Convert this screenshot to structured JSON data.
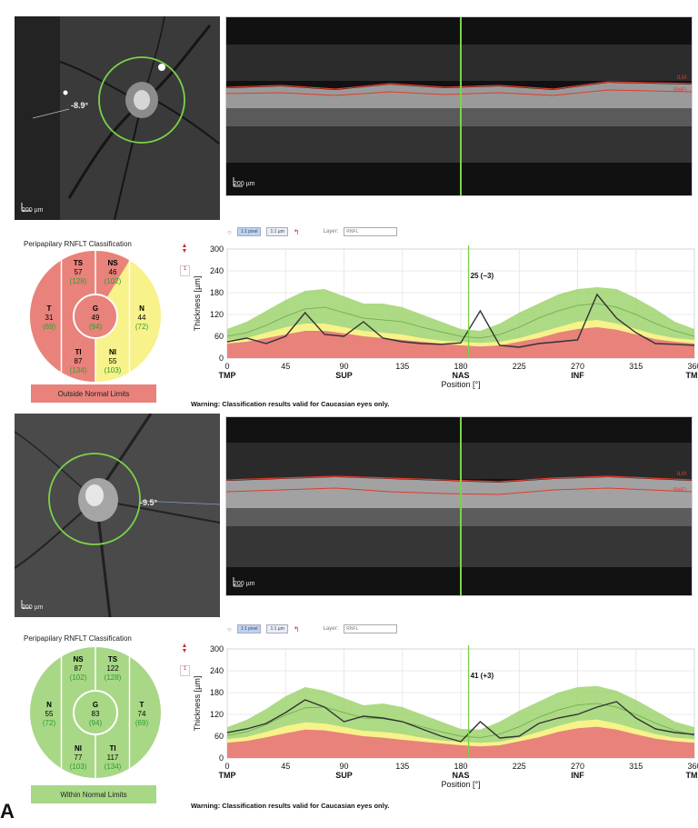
{
  "colors": {
    "abnormal": "#e8827b",
    "borderline": "#f7f28a",
    "normal": "#a8d786",
    "normal_band": "#9fd36f",
    "scan_line": "#7bd24b",
    "text_normal_ref": "#2f9e2f"
  },
  "icons": [
    "arrow-icon",
    "up-down-arrows-icon",
    "ruler-icon",
    "layer-icon"
  ],
  "top": {
    "fundus": {
      "angle": "-8.9°",
      "scale": "200 µm"
    },
    "bscan": {
      "scale": "200 µm",
      "ilm": "ILM",
      "rnfl": "RNFL"
    },
    "toolbar": {
      "btn1": "1:1 pixel",
      "btn2": "1:1 µm",
      "layer_label": "Layer:",
      "layer_value": "RNFL"
    },
    "classification": {
      "title": "Peripapilary RNFLT Classification",
      "status": "Outside Normal Limits",
      "sectors": {
        "TS": {
          "label": "TS",
          "value": "57",
          "ref": "(128)"
        },
        "NS": {
          "label": "NS",
          "value": "46",
          "ref": "(102)"
        },
        "T": {
          "label": "T",
          "value": "31",
          "ref": "(69)"
        },
        "G": {
          "label": "G",
          "value": "49",
          "ref": "(94)"
        },
        "N": {
          "label": "N",
          "value": "44",
          "ref": "(72)"
        },
        "TI": {
          "label": "TI",
          "value": "87",
          "ref": "(134)"
        },
        "NI": {
          "label": "NI",
          "value": "55",
          "ref": "(103)"
        }
      }
    },
    "warning": "Warning: Classification results valid for Caucasian eyes only.",
    "side_num": "1"
  },
  "bottom": {
    "fundus": {
      "angle": "-9.5°",
      "scale": "200 µm"
    },
    "bscan": {
      "scale": "200 µm",
      "ilm": "ILM",
      "rnfl": "RNFL"
    },
    "toolbar": {
      "btn1": "1:1 pixel",
      "btn2": "1:1 µm",
      "layer_label": "Layer:",
      "layer_value": "RNFL"
    },
    "classification": {
      "title": "Peripapilary RNFLT Classification",
      "status": "Within Normal Limits",
      "sectors": {
        "NS": {
          "label": "NS",
          "value": "87",
          "ref": "(102)"
        },
        "TS": {
          "label": "TS",
          "value": "122",
          "ref": "(128)"
        },
        "N": {
          "label": "N",
          "value": "55",
          "ref": "(72)"
        },
        "G": {
          "label": "G",
          "value": "83",
          "ref": "(94)"
        },
        "T": {
          "label": "T",
          "value": "74",
          "ref": "(69)"
        },
        "NI": {
          "label": "NI",
          "value": "77",
          "ref": "(103)"
        },
        "TI": {
          "label": "TI",
          "value": "117",
          "ref": "(134)"
        }
      }
    },
    "warning": "Warning: Classification results valid for Caucasian eyes only.",
    "side_num": "1"
  },
  "panel_letter": "A",
  "chart_data": [
    {
      "type": "area",
      "ylabel": "Thickness [µm]",
      "xlabel": "Position [°]",
      "xlim": [
        0,
        360
      ],
      "ylim": [
        0,
        300
      ],
      "yticks": [
        0,
        60,
        120,
        180,
        240,
        300
      ],
      "xticks": [
        0,
        45,
        90,
        135,
        180,
        225,
        270,
        315,
        360
      ],
      "region_labels": [
        {
          "x": 0,
          "label": "TMP"
        },
        {
          "x": 90,
          "label": "SUP"
        },
        {
          "x": 180,
          "label": "NAS"
        },
        {
          "x": 270,
          "label": "INF"
        },
        {
          "x": 360,
          "label": "TMP"
        }
      ],
      "cursor": {
        "x": 186,
        "label": "25 (−3)"
      },
      "x": [
        0,
        15,
        30,
        45,
        60,
        75,
        90,
        105,
        120,
        135,
        150,
        165,
        180,
        195,
        210,
        225,
        240,
        255,
        270,
        285,
        300,
        315,
        330,
        345,
        360
      ],
      "normal_upper": [
        80,
        100,
        130,
        160,
        185,
        190,
        170,
        150,
        150,
        140,
        120,
        100,
        80,
        75,
        95,
        125,
        150,
        175,
        190,
        195,
        190,
        165,
        135,
        100,
        80
      ],
      "borderline_upper": [
        50,
        55,
        70,
        85,
        95,
        95,
        85,
        75,
        70,
        65,
        55,
        48,
        45,
        42,
        45,
        55,
        70,
        85,
        100,
        105,
        95,
        80,
        65,
        55,
        50
      ],
      "abnormal_upper": [
        40,
        45,
        55,
        65,
        75,
        75,
        68,
        60,
        55,
        50,
        45,
        40,
        35,
        32,
        35,
        45,
        55,
        70,
        80,
        85,
        78,
        65,
        52,
        45,
        40
      ],
      "mean": [
        60,
        70,
        90,
        115,
        135,
        140,
        125,
        110,
        105,
        100,
        85,
        72,
        60,
        55,
        65,
        85,
        110,
        130,
        145,
        150,
        140,
        120,
        95,
        75,
        60
      ],
      "measured": [
        45,
        55,
        40,
        60,
        125,
        65,
        60,
        100,
        55,
        45,
        40,
        38,
        42,
        130,
        35,
        30,
        40,
        45,
        50,
        175,
        110,
        70,
        40,
        38,
        35
      ]
    },
    {
      "type": "area",
      "ylabel": "Thickness [µm]",
      "xlabel": "Position [°]",
      "xlim": [
        0,
        360
      ],
      "ylim": [
        0,
        300
      ],
      "yticks": [
        0,
        60,
        120,
        180,
        240,
        300
      ],
      "xticks": [
        0,
        45,
        90,
        135,
        180,
        225,
        270,
        315,
        360
      ],
      "region_labels": [
        {
          "x": 0,
          "label": "TMP"
        },
        {
          "x": 90,
          "label": "SUP"
        },
        {
          "x": 180,
          "label": "NAS"
        },
        {
          "x": 270,
          "label": "INF"
        },
        {
          "x": 360,
          "label": "TMP"
        }
      ],
      "cursor": {
        "x": 186,
        "label": "41 (+3)"
      },
      "x": [
        0,
        15,
        30,
        45,
        60,
        75,
        90,
        105,
        120,
        135,
        150,
        165,
        180,
        195,
        210,
        225,
        240,
        255,
        270,
        285,
        300,
        315,
        330,
        345,
        360
      ],
      "normal_upper": [
        85,
        105,
        135,
        170,
        195,
        185,
        165,
        145,
        150,
        140,
        120,
        100,
        80,
        78,
        100,
        130,
        155,
        180,
        195,
        198,
        185,
        160,
        130,
        100,
        85
      ],
      "borderline_upper": [
        52,
        58,
        72,
        88,
        98,
        95,
        85,
        75,
        72,
        66,
        56,
        48,
        45,
        42,
        45,
        56,
        72,
        88,
        102,
        106,
        95,
        80,
        66,
        56,
        52
      ],
      "abnormal_upper": [
        42,
        47,
        57,
        68,
        78,
        76,
        68,
        60,
        56,
        50,
        45,
        40,
        35,
        32,
        35,
        46,
        57,
        72,
        82,
        86,
        78,
        65,
        53,
        46,
        42
      ],
      "mean": [
        62,
        72,
        92,
        118,
        138,
        140,
        125,
        110,
        108,
        100,
        86,
        72,
        60,
        56,
        66,
        86,
        112,
        132,
        146,
        150,
        140,
        120,
        96,
        76,
        62
      ],
      "measured": [
        70,
        80,
        95,
        125,
        160,
        140,
        100,
        115,
        110,
        100,
        80,
        60,
        45,
        100,
        55,
        60,
        95,
        110,
        120,
        140,
        155,
        110,
        80,
        70,
        65
      ]
    }
  ]
}
